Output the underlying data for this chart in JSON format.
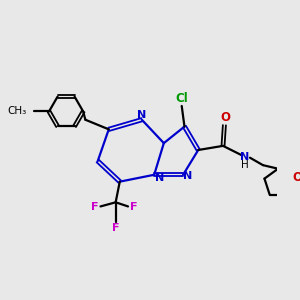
{
  "background_color": "#e8e8e8",
  "bond_color": "#000000",
  "ring_color": "#0000cc",
  "cl_color": "#009900",
  "o_color": "#cc0000",
  "n_color": "#0000cc",
  "f_color": "#cc00cc",
  "figsize": [
    3.0,
    3.0
  ],
  "dpi": 100,
  "xlim": [
    0,
    10
  ],
  "ylim": [
    0,
    10
  ]
}
